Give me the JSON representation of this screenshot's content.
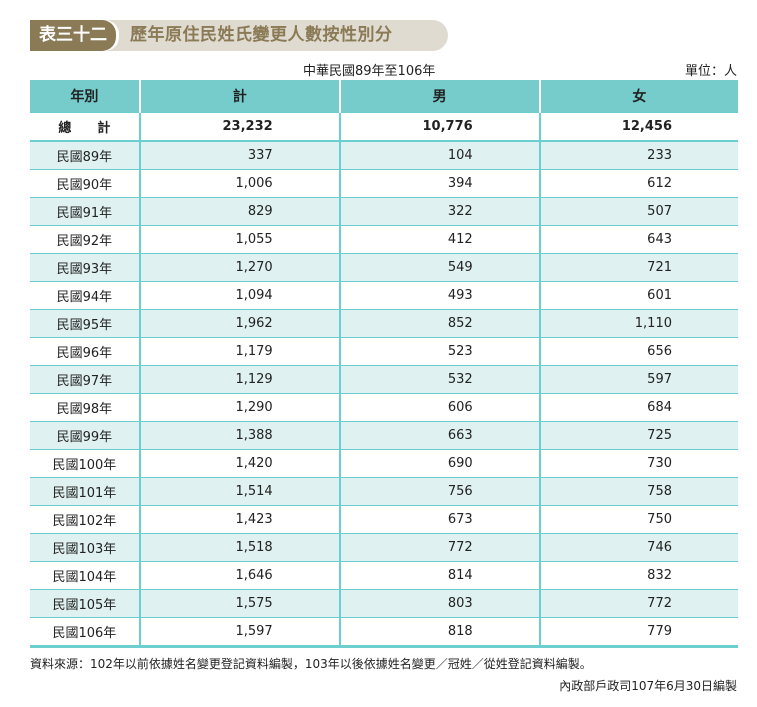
{
  "title": {
    "number": "表三十二",
    "text": "歷年原住民姓氏變更人數按性別分"
  },
  "period": "中華民國89年至106年",
  "unit": "單位：人",
  "headers": [
    "年別",
    "計",
    "男",
    "女"
  ],
  "total": {
    "label": "總　　計",
    "values": [
      "23,232",
      "10,776",
      "12,456"
    ]
  },
  "rows": [
    [
      "民國89年",
      "337",
      "104",
      "233"
    ],
    [
      "民國90年",
      "1,006",
      "394",
      "612"
    ],
    [
      "民國91年",
      "829",
      "322",
      "507"
    ],
    [
      "民國92年",
      "1,055",
      "412",
      "643"
    ],
    [
      "民國93年",
      "1,270",
      "549",
      "721"
    ],
    [
      "民國94年",
      "1,094",
      "493",
      "601"
    ],
    [
      "民國95年",
      "1,962",
      "852",
      "1,110"
    ],
    [
      "民國96年",
      "1,179",
      "523",
      "656"
    ],
    [
      "民國97年",
      "1,129",
      "532",
      "597"
    ],
    [
      "民國98年",
      "1,290",
      "606",
      "684"
    ],
    [
      "民國99年",
      "1,388",
      "663",
      "725"
    ],
    [
      "民國100年",
      "1,420",
      "690",
      "730"
    ],
    [
      "民國101年",
      "1,514",
      "756",
      "758"
    ],
    [
      "民國102年",
      "1,423",
      "673",
      "750"
    ],
    [
      "民國103年",
      "1,518",
      "772",
      "746"
    ],
    [
      "民國104年",
      "1,646",
      "814",
      "832"
    ],
    [
      "民國105年",
      "1,575",
      "803",
      "772"
    ],
    [
      "民國106年",
      "1,597",
      "818",
      "779"
    ]
  ],
  "note": "資料來源：102年以前依據姓名變更登記資料編製，103年以後依據姓名變更／冠姓／從姓登記資料編製。",
  "compiled_by": "內政部戶政司107年6月30日編製"
}
